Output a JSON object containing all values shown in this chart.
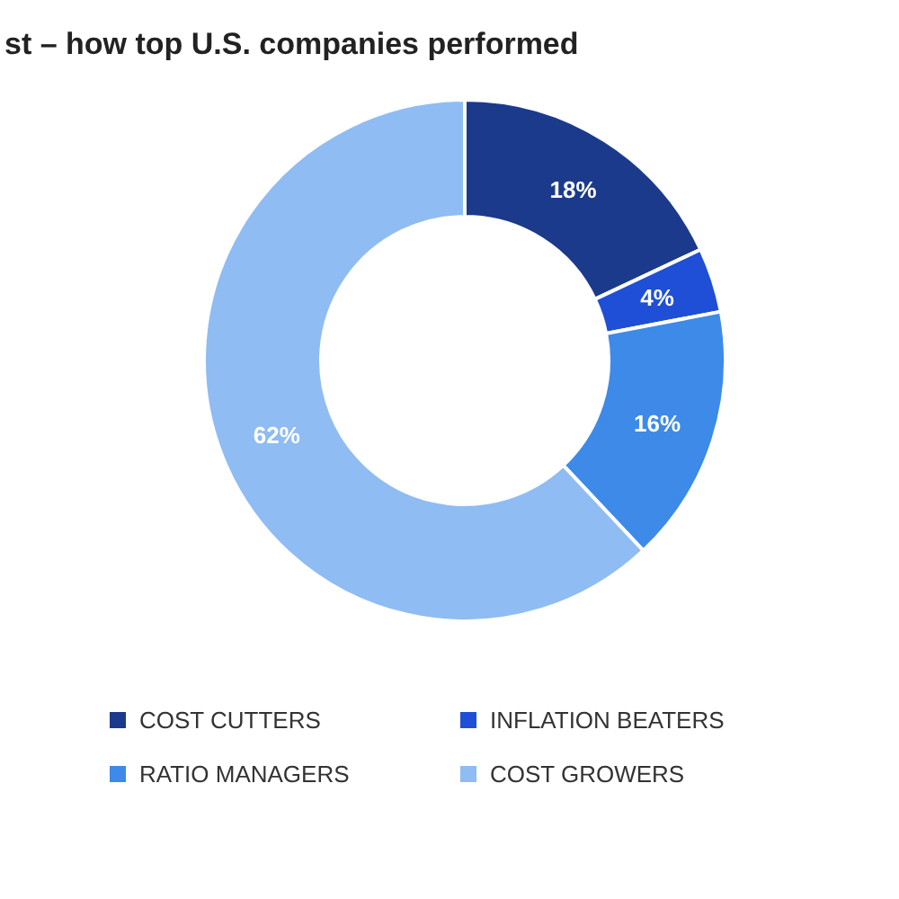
{
  "chart_data": {
    "type": "donut",
    "title": "st – how top U.S. companies performed",
    "categories": [
      "COST CUTTERS",
      "INFLATION BEATERS",
      "RATIO MANAGERS",
      "COST GROWERS"
    ],
    "values": [
      18,
      4,
      16,
      62
    ],
    "colors": [
      "#1b3a8c",
      "#1f4fd6",
      "#3d8ae8",
      "#8fbcf2"
    ],
    "value_labels": [
      "18%",
      "4%",
      "16%",
      "62%"
    ],
    "legend": "bottom"
  }
}
